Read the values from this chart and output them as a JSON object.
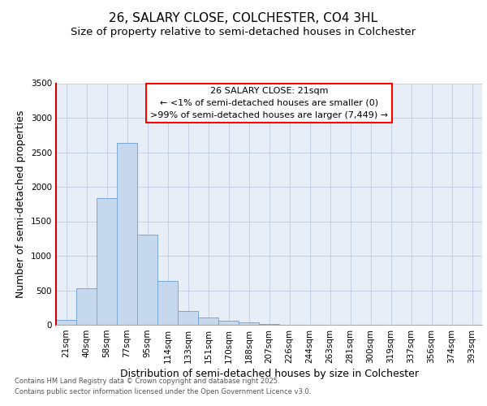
{
  "title": "26, SALARY CLOSE, COLCHESTER, CO4 3HL",
  "subtitle": "Size of property relative to semi-detached houses in Colchester",
  "xlabel": "Distribution of semi-detached houses by size in Colchester",
  "ylabel": "Number of semi-detached properties",
  "categories": [
    "21sqm",
    "40sqm",
    "58sqm",
    "77sqm",
    "95sqm",
    "114sqm",
    "133sqm",
    "151sqm",
    "170sqm",
    "188sqm",
    "207sqm",
    "226sqm",
    "244sqm",
    "263sqm",
    "281sqm",
    "300sqm",
    "319sqm",
    "337sqm",
    "356sqm",
    "374sqm",
    "393sqm"
  ],
  "values": [
    75,
    530,
    1840,
    2630,
    1310,
    630,
    205,
    110,
    60,
    30,
    15,
    5,
    0,
    0,
    0,
    0,
    0,
    0,
    0,
    0,
    0
  ],
  "bar_color": "#c5d8ee",
  "bar_edge_color": "#7aa8d4",
  "background_color": "#e8eef8",
  "annotation_line1": "26 SALARY CLOSE: 21sqm",
  "annotation_line2": "← <1% of semi-detached houses are smaller (0)",
  "annotation_line3": ">99% of semi-detached houses are larger (7,449) →",
  "ylim": [
    0,
    3500
  ],
  "yticks": [
    0,
    500,
    1000,
    1500,
    2000,
    2500,
    3000,
    3500
  ],
  "footer_line1": "Contains HM Land Registry data © Crown copyright and database right 2025.",
  "footer_line2": "Contains public sector information licensed under the Open Government Licence v3.0.",
  "title_fontsize": 11,
  "subtitle_fontsize": 9.5,
  "tick_fontsize": 7.5,
  "label_fontsize": 9,
  "footer_fontsize": 6,
  "annotation_fontsize": 8
}
